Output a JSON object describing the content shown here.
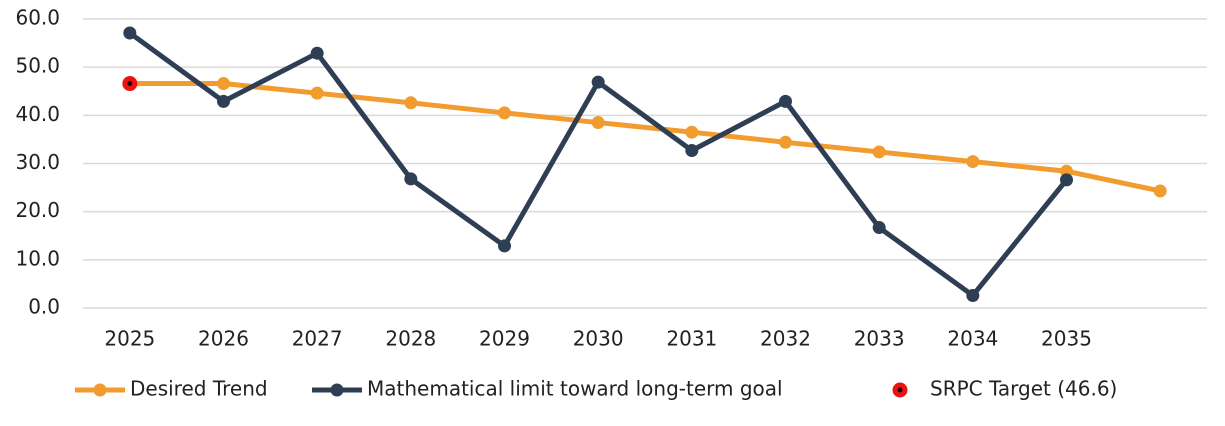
{
  "chart_data": {
    "type": "line",
    "categories": [
      "2025",
      "2026",
      "2027",
      "2028",
      "2029",
      "2030",
      "2031",
      "2032",
      "2033",
      "2034",
      "2035",
      null
    ],
    "series": [
      {
        "name": "Desired Trend",
        "color": "#f29b2f",
        "values": [
          46.6,
          46.6,
          44.6,
          42.6,
          40.5,
          38.5,
          36.5,
          34.4,
          32.4,
          30.4,
          28.4,
          24.3
        ]
      },
      {
        "name": "Mathematical limit toward long-term goal",
        "color": "#2e3e55",
        "values": [
          57.1,
          42.9,
          52.9,
          26.8,
          12.9,
          46.9,
          32.7,
          42.9,
          16.7,
          2.6,
          26.6,
          null
        ]
      },
      {
        "name": "SRPC Target (46.6)",
        "color": "#ee1111",
        "marker_only": true,
        "values": [
          46.6,
          null,
          null,
          null,
          null,
          null,
          null,
          null,
          null,
          null,
          null,
          null
        ]
      }
    ],
    "ylim": [
      0,
      60
    ],
    "yticks": [
      {
        "value": 0,
        "label": "0.0"
      },
      {
        "value": 10,
        "label": "10.0"
      },
      {
        "value": 20,
        "label": "20.0"
      },
      {
        "value": 30,
        "label": "30.0"
      },
      {
        "value": 40,
        "label": "40.0"
      },
      {
        "value": 50,
        "label": "50.0"
      },
      {
        "value": 60,
        "label": "60.0"
      }
    ],
    "grid": true,
    "legend": "bottom"
  }
}
